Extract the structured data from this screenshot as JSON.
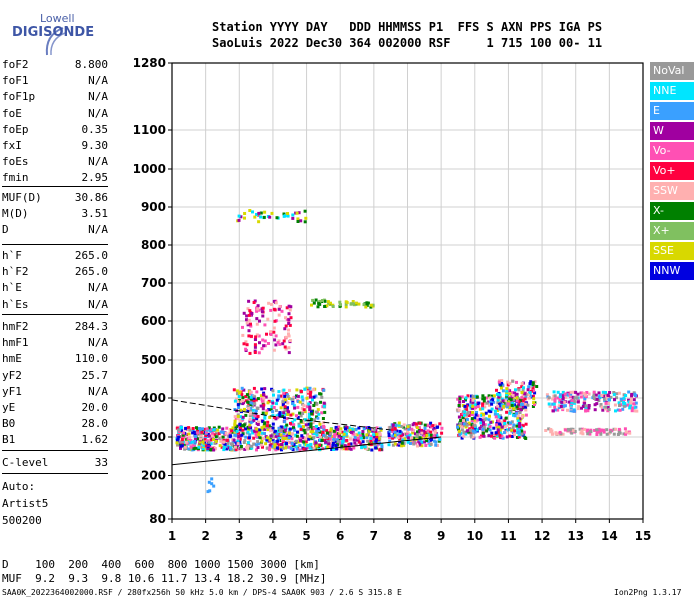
{
  "logo": {
    "line1": "Lowell",
    "line2": "DIGISONDE"
  },
  "header": {
    "line1": "Station YYYY DAY   DDD HHMMSS P1  FFS S AXN PPS IGA PS",
    "line2": "SaoLuis 2022 Dec30 364 002000 RSF     1 715 100 00- 11"
  },
  "params_group1": [
    {
      "key": "foF2",
      "value": "8.800"
    },
    {
      "key": "foF1",
      "value": "N/A"
    },
    {
      "key": "foF1p",
      "value": "N/A"
    },
    {
      "key": "foE",
      "value": "N/A"
    },
    {
      "key": "foEp",
      "value": "0.35"
    },
    {
      "key": "fxI",
      "value": "9.30"
    },
    {
      "key": "foEs",
      "value": "N/A"
    },
    {
      "key": "fmin",
      "value": "2.95"
    }
  ],
  "params_group2": [
    {
      "key": "MUF(D)",
      "value": "30.86"
    },
    {
      "key": "M(D)",
      "value": "3.51"
    },
    {
      "key": "D",
      "value": "N/A"
    }
  ],
  "params_group3": [
    {
      "key": "h`F",
      "value": "265.0"
    },
    {
      "key": "h`F2",
      "value": "265.0"
    },
    {
      "key": "h`E",
      "value": "N/A"
    },
    {
      "key": "h`Es",
      "value": "N/A"
    }
  ],
  "params_group4": [
    {
      "key": "hmF2",
      "value": "284.3"
    },
    {
      "key": "hmF1",
      "value": "N/A"
    },
    {
      "key": "hmE",
      "value": "110.0"
    },
    {
      "key": "yF2",
      "value": "25.7"
    },
    {
      "key": "yF1",
      "value": "N/A"
    },
    {
      "key": "yE",
      "value": "20.0"
    },
    {
      "key": "B0",
      "value": "28.0"
    },
    {
      "key": "B1",
      "value": "1.62"
    }
  ],
  "params_group5": [
    {
      "key": "C-level",
      "value": "33"
    }
  ],
  "autoscale": {
    "line1": "Auto:",
    "line2": "Artist5",
    "line3": "500200"
  },
  "legend": [
    {
      "label": "NoVal",
      "color": "#999999"
    },
    {
      "label": "NNE",
      "color": "#00e5ff"
    },
    {
      "label": "E",
      "color": "#3aa0ff"
    },
    {
      "label": "W",
      "color": "#a000a0"
    },
    {
      "label": "Vo-",
      "color": "#ff50b4"
    },
    {
      "label": "Vo+",
      "color": "#ff0040"
    },
    {
      "label": "SSW",
      "color": "#ffb0b0"
    },
    {
      "label": "X-",
      "color": "#008000"
    },
    {
      "label": "X+",
      "color": "#80c060"
    },
    {
      "label": "SSE",
      "color": "#d8d800"
    },
    {
      "label": "NNW",
      "color": "#0000e0"
    }
  ],
  "footer": {
    "d_row": "D    100  200  400  600  800 1000 1500 3000 [km]",
    "muf_row": "MUF  9.2  9.3  9.8 10.6 11.7 13.4 18.2 30.9 [MHz]",
    "file_info": "SAA0K_2022364002000.RSF / 280fx256h 50 kHz 5.0 km / DPS-4 SAA0K 903 / 2.6 S 315.8 E",
    "version": "Ion2Png 1.3.17"
  },
  "chart_data": {
    "type": "scatter",
    "xlim": [
      1,
      15
    ],
    "ylim_labels": [
      "80",
      "200",
      "300",
      "400",
      "500",
      "600",
      "700",
      "800",
      "900",
      "1000",
      "1100",
      "1280"
    ],
    "x_ticks": [
      "1",
      "2",
      "3",
      "4",
      "5",
      "6",
      "7",
      "8",
      "9",
      "10",
      "11",
      "12",
      "13",
      "14",
      "15"
    ],
    "y_ticks": [
      80,
      200,
      300,
      400,
      500,
      600,
      700,
      800,
      900,
      1000,
      1100,
      1280
    ],
    "grid": true,
    "legend_position": "right"
  }
}
